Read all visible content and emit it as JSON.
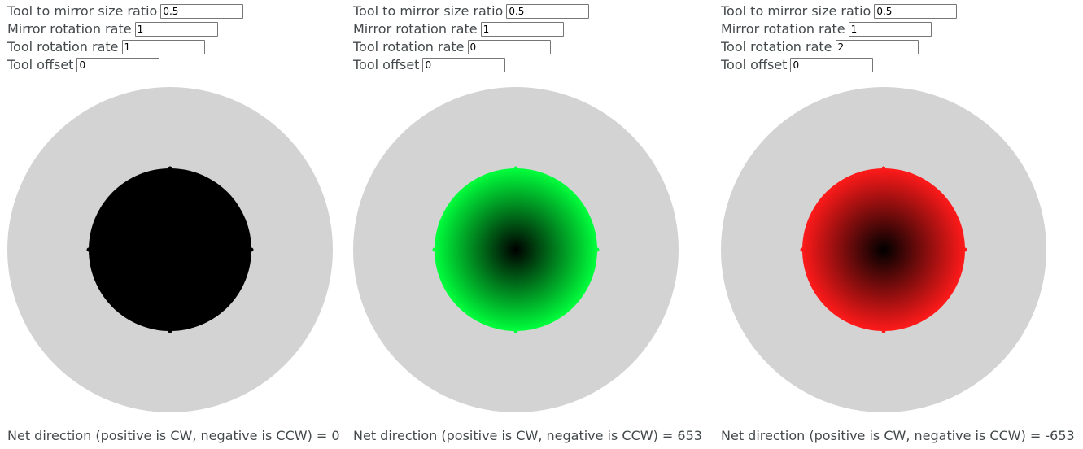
{
  "panels": [
    {
      "fields": [
        {
          "label": "Tool to mirror size ratio",
          "value": "0.5"
        },
        {
          "label": "Mirror rotation rate",
          "value": "1"
        },
        {
          "label": "Tool rotation rate",
          "value": "1"
        },
        {
          "label": "Tool offset",
          "value": "0"
        }
      ],
      "net_label": "Net direction (positive is CW, negative is CCW) = 0",
      "colors": {
        "mirror": "#d3d3d3",
        "tool_edge": "#000000",
        "tool_center": "#000000"
      }
    },
    {
      "fields": [
        {
          "label": "Tool to mirror size ratio",
          "value": "0.5"
        },
        {
          "label": "Mirror rotation rate",
          "value": "1"
        },
        {
          "label": "Tool rotation rate",
          "value": "0"
        },
        {
          "label": "Tool offset",
          "value": "0"
        }
      ],
      "net_label": "Net direction (positive is CW, negative is CCW) = 653",
      "colors": {
        "mirror": "#d3d3d3",
        "tool_edge": "#00ff3c",
        "tool_center": "#000000"
      }
    },
    {
      "fields": [
        {
          "label": "Tool to mirror size ratio",
          "value": "0.5"
        },
        {
          "label": "Mirror rotation rate",
          "value": "1"
        },
        {
          "label": "Tool rotation rate",
          "value": "2"
        },
        {
          "label": "Tool offset",
          "value": "0"
        }
      ],
      "net_label": "Net direction (positive is CW, negative is CCW) = -653",
      "colors": {
        "mirror": "#d3d3d3",
        "tool_edge": "#ff1a1a",
        "tool_center": "#000000"
      }
    }
  ]
}
